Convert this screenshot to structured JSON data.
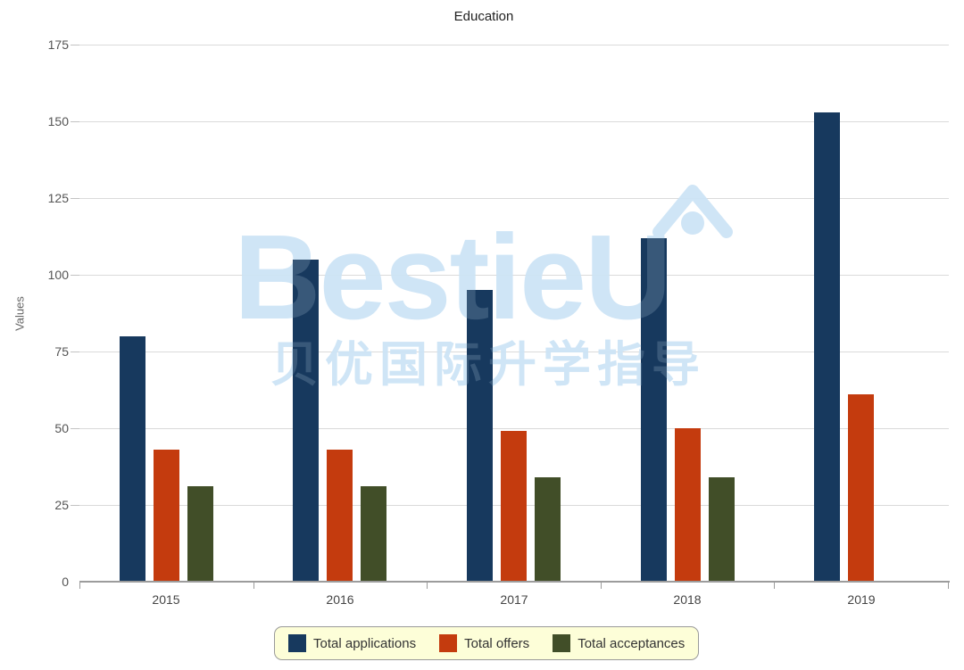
{
  "chart_data": {
    "type": "bar",
    "title": "Education",
    "xlabel": "",
    "ylabel": "Values",
    "categories": [
      "2015",
      "2016",
      "2017",
      "2018",
      "2019"
    ],
    "series": [
      {
        "name": "Total applications",
        "color": "#17395E",
        "values": [
          80,
          105,
          95,
          112,
          153
        ]
      },
      {
        "name": "Total offers",
        "color": "#C43B0E",
        "values": [
          43,
          43,
          49,
          50,
          61
        ]
      },
      {
        "name": "Total acceptances",
        "color": "#414E28",
        "values": [
          31,
          31,
          34,
          34,
          0
        ]
      }
    ],
    "ylim": [
      0,
      175
    ],
    "yticks": [
      0,
      25,
      50,
      75,
      100,
      125,
      150,
      175
    ],
    "grid": true,
    "legend_position": "bottom",
    "legend_background": "#FDFED8",
    "gridline_color": "#dadada",
    "axis_color": "#9c9c9c"
  },
  "watermark": {
    "brand": "BestieU",
    "tagline": "贝优国际升学指导",
    "color": "#CDE4F6",
    "icon": "house-icon"
  }
}
